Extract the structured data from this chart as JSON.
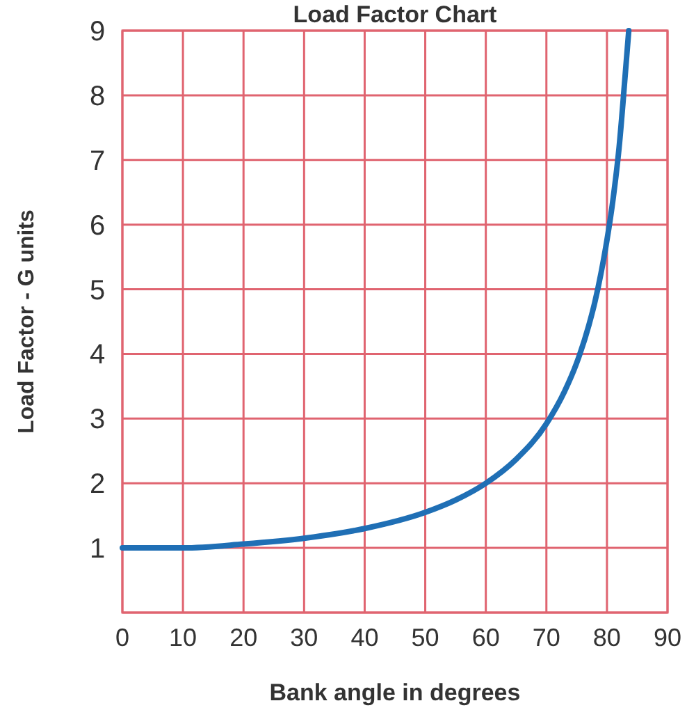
{
  "chart_data": {
    "type": "line",
    "title": "Load Factor Chart",
    "xlabel": "Bank angle in degrees",
    "ylabel": "Load Factor - G units",
    "x": [
      0,
      10,
      20,
      30,
      40,
      50,
      55,
      60,
      65,
      70,
      73,
      75,
      77,
      78,
      79,
      80,
      81,
      82,
      83,
      83.6
    ],
    "series": [
      {
        "color": "#1f6fb5",
        "values": [
          1,
          1.0,
          1.06,
          1.15,
          1.3,
          1.55,
          1.74,
          2,
          2.37,
          2.92,
          3.42,
          3.86,
          4.44,
          4.8,
          5.24,
          5.76,
          6.39,
          7.19,
          8.3,
          9
        ]
      }
    ],
    "xlim": [
      0,
      90
    ],
    "xticks": [
      0,
      10,
      20,
      30,
      40,
      50,
      60,
      70,
      80,
      90
    ],
    "ylim": [
      0,
      9
    ],
    "yticks": [
      {
        "value": 0,
        "label": null
      },
      1,
      2,
      3,
      4,
      5,
      6,
      7,
      8,
      9
    ],
    "grid": true,
    "marker": "none",
    "line_style": "solid"
  }
}
